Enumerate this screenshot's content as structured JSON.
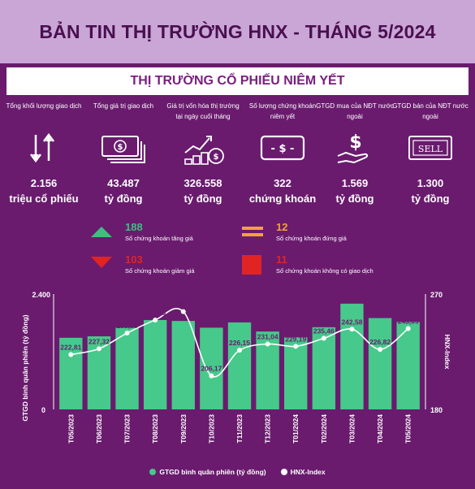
{
  "header": {
    "title": "BẢN TIN THỊ TRƯỜNG HNX - THÁNG 5/2024"
  },
  "subheader": {
    "title": "THỊ TRƯỜNG CỔ PHIẾU NIÊM YẾT"
  },
  "stats": [
    {
      "label": "Tổng khối lượng giao dịch",
      "value": "2.156",
      "unit": "triệu cổ phiếu",
      "icon": "up-down-arrows-icon"
    },
    {
      "label": "Tổng giá trị giao dịch",
      "value": "43.487",
      "unit": "tỷ đồng",
      "icon": "money-bills-icon"
    },
    {
      "label": "Giá trị vốn hóa thị trường tại ngày cuối tháng",
      "value": "326.558",
      "unit": "tỷ đồng",
      "icon": "coins-growth-icon"
    },
    {
      "label": "Số lượng chứng khoán niêm yết",
      "value": "322",
      "unit": "chứng khoán",
      "icon": "banknote-icon"
    },
    {
      "label": "GTGD mua của NĐT nước ngoài",
      "value": "1.569",
      "unit": "tỷ đồng",
      "icon": "hand-dollar-icon"
    },
    {
      "label": "GTGD bán của NĐT nước ngoài",
      "value": "1.300",
      "unit": "tỷ đồng",
      "icon": "sell-sign-icon"
    }
  ],
  "breadth": {
    "up": {
      "count": "188",
      "label": "Số chứng khoán tăng giá",
      "color": "#3fbf7f"
    },
    "flat": {
      "count": "12",
      "label": "Số chứng khoán đứng giá",
      "color": "#f2a23a"
    },
    "down": {
      "count": "103",
      "label": "Số chứng khoán giảm giá",
      "color": "#e02424"
    },
    "none": {
      "count": "11",
      "label": "Số chứng khoán không có giao dịch",
      "color": "#e02424"
    }
  },
  "chart_data": {
    "type": "bar",
    "categories": [
      "T05/2023",
      "T06/2023",
      "T07/2023",
      "T08/2023",
      "T09/2023",
      "T10/2023",
      "T11/2023",
      "T12/2023",
      "T01/2024",
      "T02/2024",
      "T03/2024",
      "T04/2024",
      "T05/2024"
    ],
    "series": [
      {
        "name": "GTGD bình quân phiên (tỷ đồng)",
        "type": "bar",
        "axis": "left",
        "values": [
          1490,
          1520,
          1700,
          1860,
          1840,
          1700,
          1810,
          1620,
          1500,
          1710,
          2200,
          1900,
          1820
        ]
      },
      {
        "name": "HNX-Index",
        "type": "line",
        "axis": "right",
        "values": [
          222.81,
          227.32,
          239.55,
          249.75,
          256.32,
          206.17,
          226.15,
          231.04,
          229.19,
          235.46,
          242.58,
          226.82,
          243.09
        ],
        "labels": [
          "222,81",
          "227,32",
          "239,55",
          "249,75",
          "256,32",
          "206,17",
          "226,15",
          "231,04",
          "229,19",
          "235,46",
          "242,58",
          "226,82",
          "243,09"
        ]
      }
    ],
    "ylabel": "GTGD bình quân phiên (tỷ đồng)",
    "ylabel_right": "HNX-Index",
    "ylim": [
      0,
      2400
    ],
    "ylim_right": [
      180,
      270
    ],
    "left_ticks": [
      "0",
      "2.400"
    ],
    "right_ticks": [
      "180",
      "270"
    ],
    "bar_color": "#46c98a",
    "line_color": "#ffffff",
    "legend": "bottom"
  }
}
